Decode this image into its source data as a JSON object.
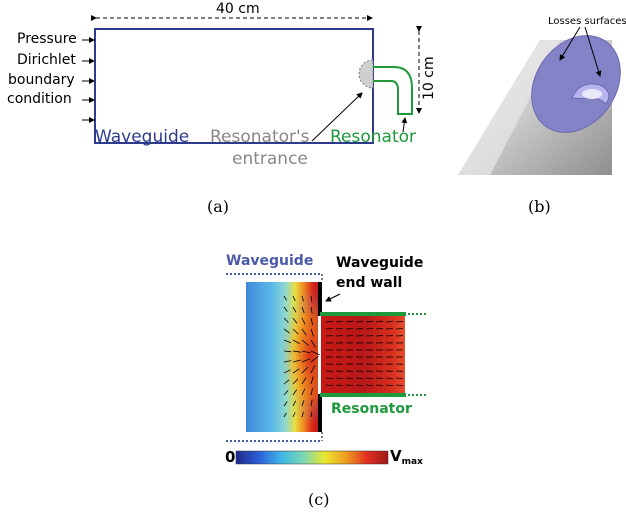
{
  "panel_a": {
    "dimension_width": "40 cm",
    "dimension_height": "10 cm",
    "bc_line1": "Pressure",
    "bc_line2": "Dirichlet",
    "bc_line3": "boundary",
    "bc_line4": "condition",
    "waveguide_label": "Waveguide",
    "entrance_line1": "Resonator's",
    "entrance_line2": "entrance",
    "resonator_label": "Resonator",
    "caption": "(a)"
  },
  "panel_b": {
    "losses_label": "Losses surfaces",
    "caption": "(b)"
  },
  "panel_c": {
    "waveguide_label": "Waveguide",
    "endwall_line1": "Waveguide",
    "endwall_line2": "end wall",
    "resonator_label": "Resonator",
    "scale_min": "0",
    "scale_max_main": "V",
    "scale_max_sub": "max",
    "caption": "(c)"
  },
  "colors": {
    "waveguide_blue": "#2e3a8c",
    "resonator_green": "#1e9a3c",
    "entrance_gray": "#888888",
    "c_waveguide_blue": "#4a5aa8"
  }
}
